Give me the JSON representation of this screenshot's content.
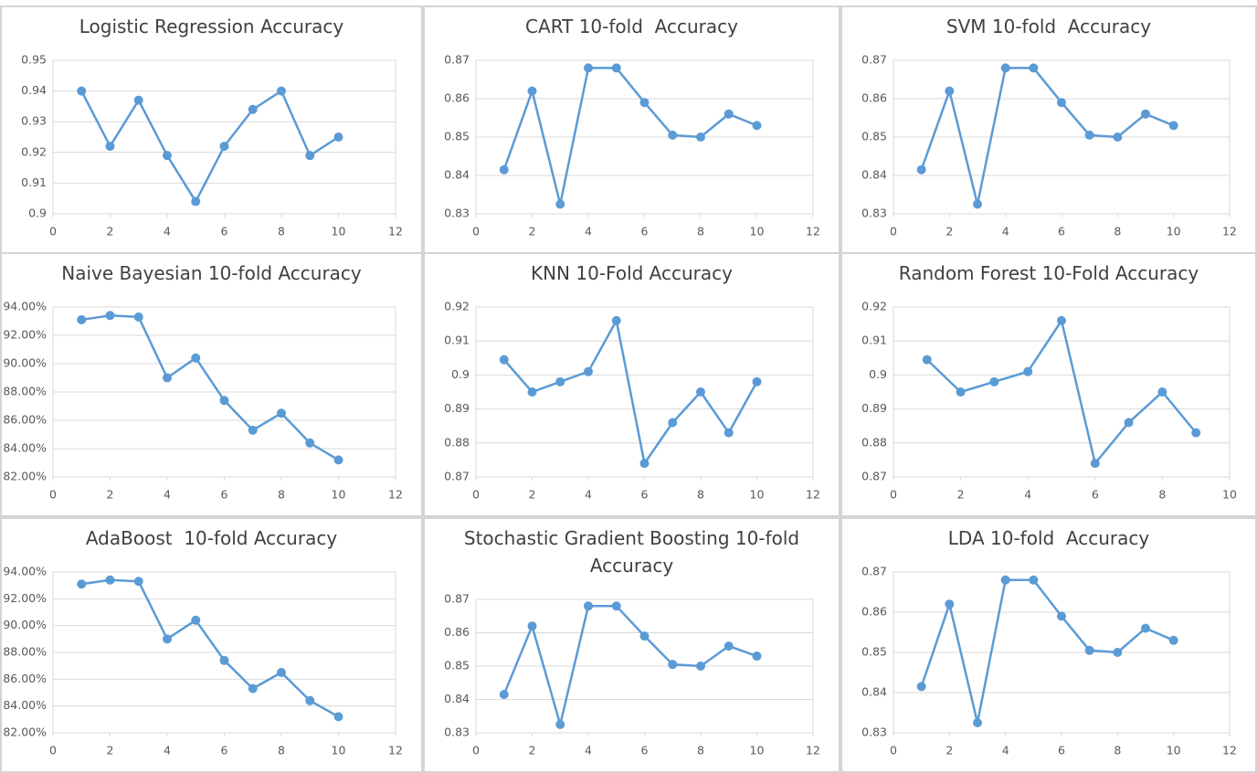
{
  "chart_data": [
    {
      "type": "line",
      "title": "Logistic Regression Accuracy",
      "x": [
        1,
        2,
        3,
        4,
        5,
        6,
        7,
        8,
        9,
        10
      ],
      "values": [
        0.94,
        0.922,
        0.937,
        0.919,
        0.904,
        0.922,
        0.934,
        0.94,
        0.919,
        0.925
      ],
      "color": "#5b9bd5",
      "xlim": [
        0,
        12
      ],
      "xticks": [
        0,
        2,
        4,
        6,
        8,
        10,
        12
      ],
      "ylim": [
        0.9,
        0.95
      ],
      "yticks": [
        0.9,
        0.91,
        0.92,
        0.93,
        0.94,
        0.95
      ],
      "grid": true
    },
    {
      "type": "line",
      "title": "CART 10-fold  Accuracy",
      "x": [
        1,
        2,
        3,
        4,
        5,
        6,
        7,
        8,
        9,
        10
      ],
      "values": [
        0.8415,
        0.862,
        0.8325,
        0.868,
        0.868,
        0.859,
        0.8505,
        0.85,
        0.856,
        0.853
      ],
      "color": "#5b9bd5",
      "xlim": [
        0,
        12
      ],
      "xticks": [
        0,
        2,
        4,
        6,
        8,
        10,
        12
      ],
      "ylim": [
        0.83,
        0.87
      ],
      "yticks": [
        0.83,
        0.84,
        0.85,
        0.86,
        0.87
      ],
      "grid": true
    },
    {
      "type": "line",
      "title": "SVM 10-fold  Accuracy",
      "x": [
        1,
        2,
        3,
        4,
        5,
        6,
        7,
        8,
        9,
        10
      ],
      "values": [
        0.8415,
        0.862,
        0.8325,
        0.868,
        0.868,
        0.859,
        0.8505,
        0.85,
        0.856,
        0.853
      ],
      "color": "#5b9bd5",
      "xlim": [
        0,
        12
      ],
      "xticks": [
        0,
        2,
        4,
        6,
        8,
        10,
        12
      ],
      "ylim": [
        0.83,
        0.87
      ],
      "yticks": [
        0.83,
        0.84,
        0.85,
        0.86,
        0.87
      ],
      "grid": true
    },
    {
      "type": "line",
      "title": "Naive Bayesian 10-fold Accuracy",
      "x": [
        1,
        2,
        3,
        4,
        5,
        6,
        7,
        8,
        9,
        10
      ],
      "values": [
        93.1,
        93.4,
        93.3,
        89.0,
        90.4,
        87.4,
        85.3,
        86.5,
        84.4,
        83.2
      ],
      "color": "#5b9bd5",
      "xlim": [
        0,
        12
      ],
      "xticks": [
        0,
        2,
        4,
        6,
        8,
        10,
        12
      ],
      "ylim": [
        82,
        94
      ],
      "yticks": [
        {
          "value": 82,
          "label": "82.00%"
        },
        {
          "value": 84,
          "label": "84.00%"
        },
        {
          "value": 86,
          "label": "86.00%"
        },
        {
          "value": 88,
          "label": "88.00%"
        },
        {
          "value": 90,
          "label": "90.00%"
        },
        {
          "value": 92,
          "label": "92.00%"
        },
        {
          "value": 94,
          "label": "94.00%"
        }
      ],
      "grid": true
    },
    {
      "type": "line",
      "title": "KNN 10-Fold Accuracy",
      "x": [
        1,
        2,
        3,
        4,
        5,
        6,
        7,
        8,
        9,
        10
      ],
      "values": [
        0.9045,
        0.895,
        0.898,
        0.901,
        0.916,
        0.874,
        0.886,
        0.895,
        0.883,
        0.898
      ],
      "color": "#5b9bd5",
      "xlim": [
        0,
        12
      ],
      "xticks": [
        0,
        2,
        4,
        6,
        8,
        10,
        12
      ],
      "ylim": [
        0.87,
        0.92
      ],
      "yticks": [
        0.87,
        0.88,
        0.89,
        0.9,
        0.91,
        0.92
      ],
      "grid": true
    },
    {
      "type": "line",
      "title": "Random Forest 10-Fold Accuracy",
      "x": [
        1,
        2,
        3,
        4,
        5,
        6,
        7,
        8,
        9
      ],
      "values": [
        0.9045,
        0.895,
        0.898,
        0.901,
        0.916,
        0.874,
        0.886,
        0.895,
        0.883
      ],
      "color": "#5b9bd5",
      "xlim": [
        0,
        10
      ],
      "xticks": [
        0,
        2,
        4,
        6,
        8,
        10
      ],
      "ylim": [
        0.87,
        0.92
      ],
      "yticks": [
        0.87,
        0.88,
        0.89,
        0.9,
        0.91,
        0.92
      ],
      "grid": true
    },
    {
      "type": "line",
      "title": "AdaBoost  10-fold Accuracy",
      "x": [
        1,
        2,
        3,
        4,
        5,
        6,
        7,
        8,
        9,
        10
      ],
      "values": [
        93.1,
        93.4,
        93.3,
        89.0,
        90.4,
        87.4,
        85.3,
        86.5,
        84.4,
        83.2
      ],
      "color": "#5b9bd5",
      "xlim": [
        0,
        12
      ],
      "xticks": [
        0,
        2,
        4,
        6,
        8,
        10,
        12
      ],
      "ylim": [
        82,
        94
      ],
      "yticks": [
        {
          "value": 82,
          "label": "82.00%"
        },
        {
          "value": 84,
          "label": "84.00%"
        },
        {
          "value": 86,
          "label": "86.00%"
        },
        {
          "value": 88,
          "label": "88.00%"
        },
        {
          "value": 90,
          "label": "90.00%"
        },
        {
          "value": 92,
          "label": "92.00%"
        },
        {
          "value": 94,
          "label": "94.00%"
        }
      ],
      "grid": true
    },
    {
      "type": "line",
      "title": "Stochastic Gradient Boosting 10-fold  Accuracy",
      "x": [
        1,
        2,
        3,
        4,
        5,
        6,
        7,
        8,
        9,
        10
      ],
      "values": [
        0.8415,
        0.862,
        0.8325,
        0.868,
        0.868,
        0.859,
        0.8505,
        0.85,
        0.856,
        0.853
      ],
      "color": "#5b9bd5",
      "xlim": [
        0,
        12
      ],
      "xticks": [
        0,
        2,
        4,
        6,
        8,
        10,
        12
      ],
      "ylim": [
        0.83,
        0.87
      ],
      "yticks": [
        0.83,
        0.84,
        0.85,
        0.86,
        0.87
      ],
      "grid": true
    },
    {
      "type": "line",
      "title": "LDA 10-fold  Accuracy",
      "x": [
        1,
        2,
        3,
        4,
        5,
        6,
        7,
        8,
        9,
        10
      ],
      "values": [
        0.8415,
        0.862,
        0.8325,
        0.868,
        0.868,
        0.859,
        0.8505,
        0.85,
        0.856,
        0.853
      ],
      "color": "#5b9bd5",
      "xlim": [
        0,
        12
      ],
      "xticks": [
        0,
        2,
        4,
        6,
        8,
        10,
        12
      ],
      "ylim": [
        0.83,
        0.87
      ],
      "yticks": [
        0.83,
        0.84,
        0.85,
        0.86,
        0.87
      ],
      "grid": true
    }
  ]
}
